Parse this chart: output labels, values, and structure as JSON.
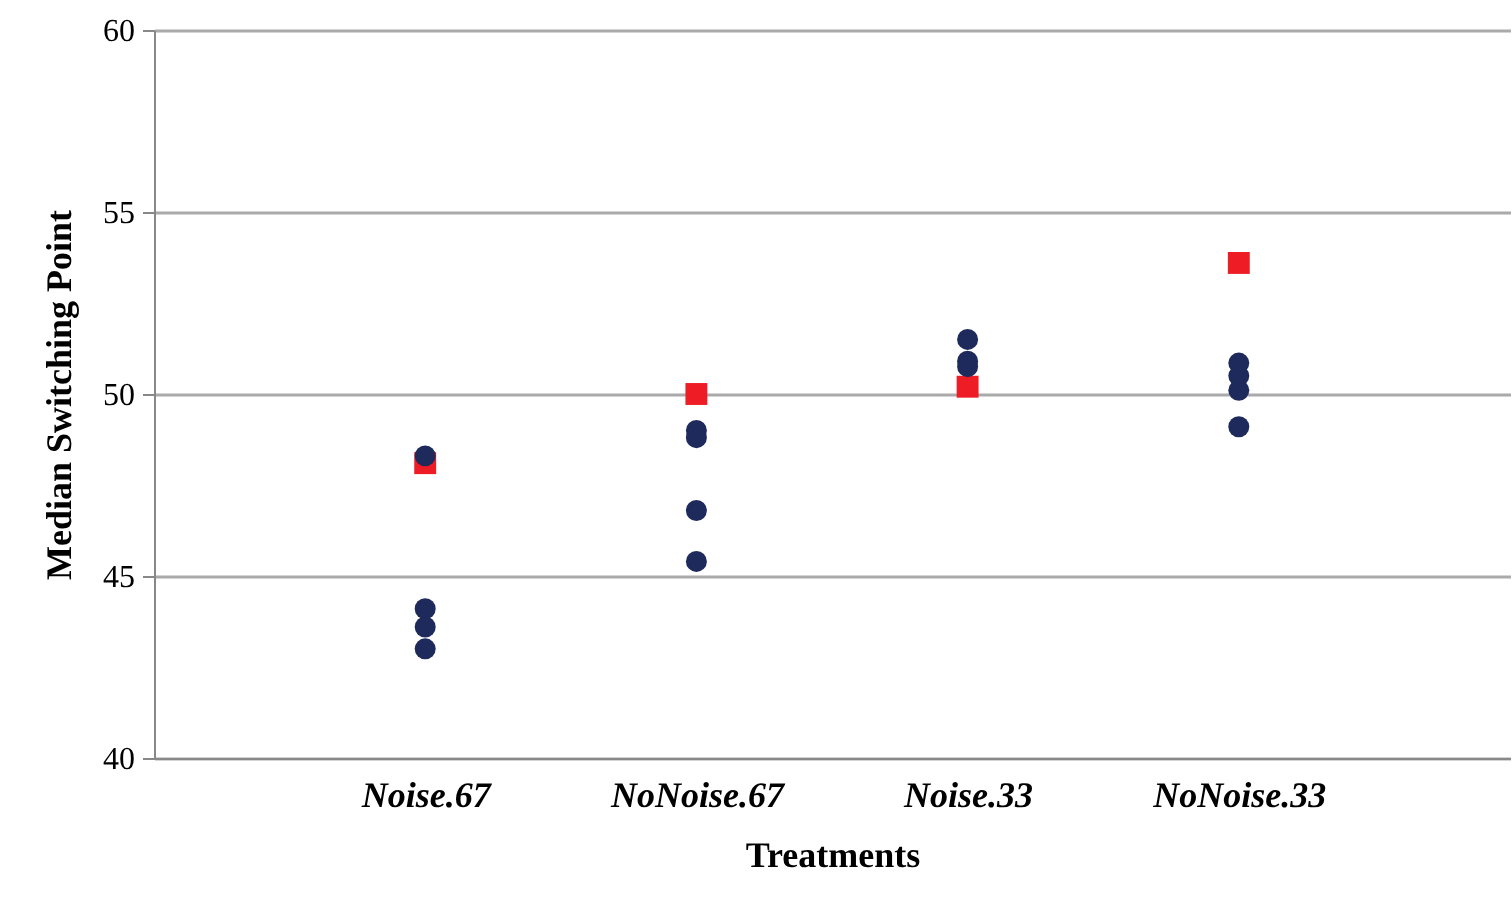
{
  "chart_data": {
    "type": "scatter",
    "xlabel": "Treatments",
    "ylabel": "Median Switching Point",
    "categories": [
      "Noise.67",
      "NoNoise.67",
      "Noise.33",
      "NoNoise.33"
    ],
    "ylim": [
      40,
      60
    ],
    "yticks": [
      40,
      45,
      50,
      55,
      60
    ],
    "grid": "y",
    "series": [
      {
        "marker": "square",
        "color": "#ee1c24",
        "x": [
          "Noise.67",
          "NoNoise.67",
          "Noise.33",
          "NoNoise.33"
        ],
        "values": [
          48.1,
          50.0,
          50.2,
          53.6
        ]
      },
      {
        "marker": "circle",
        "color": "#1f2a5c",
        "x": [
          "Noise.67",
          "Noise.67",
          "Noise.67",
          "Noise.67",
          "NoNoise.67",
          "NoNoise.67",
          "NoNoise.67",
          "NoNoise.67",
          "Noise.33",
          "Noise.33",
          "Noise.33",
          "NoNoise.33",
          "NoNoise.33",
          "NoNoise.33",
          "NoNoise.33"
        ],
        "values": [
          48.3,
          44.1,
          43.6,
          43.0,
          49.0,
          48.8,
          46.8,
          45.4,
          51.5,
          50.9,
          50.75,
          50.85,
          50.5,
          50.1,
          49.1
        ]
      }
    ]
  }
}
